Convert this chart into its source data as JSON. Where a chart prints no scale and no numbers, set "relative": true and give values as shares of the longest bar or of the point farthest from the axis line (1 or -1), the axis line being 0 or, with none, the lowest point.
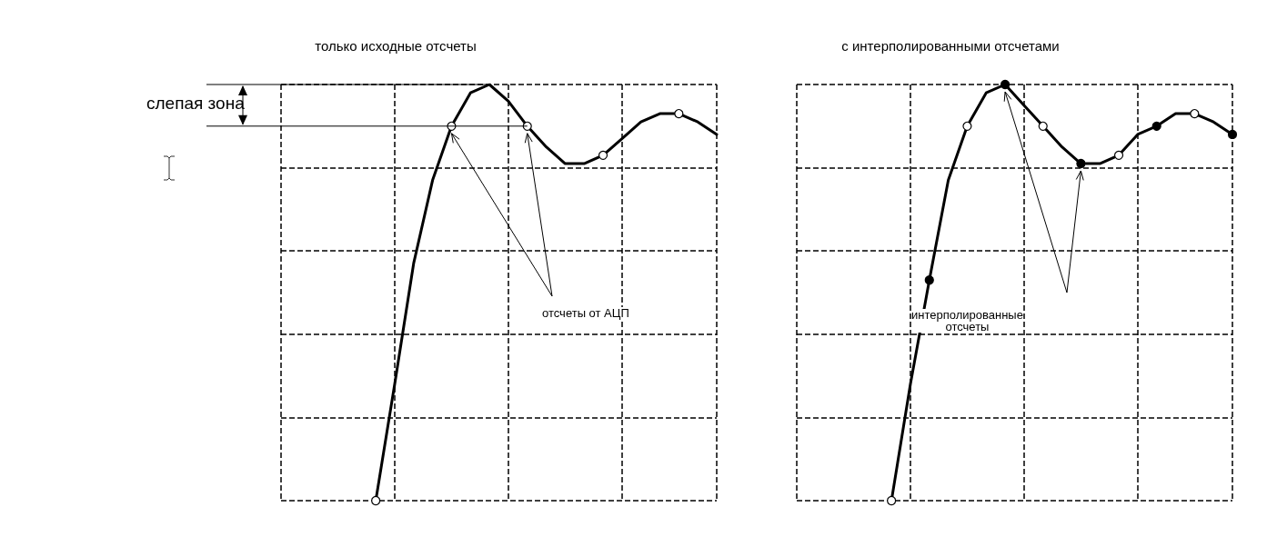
{
  "chart_data": [
    {
      "type": "line",
      "title": "только исходные отсчеты",
      "relative": true,
      "grid": true,
      "categories": [
        null,
        null,
        null,
        null,
        null,
        null,
        null,
        null,
        null,
        null,
        null,
        null,
        null,
        null,
        null,
        null,
        null,
        null,
        null,
        null,
        null,
        null,
        null,
        null
      ],
      "series": [
        {
          "color": "#000000",
          "values": [
            null,
            null,
            null,
            null,
            null,
            0,
            0.28,
            0.57,
            0.77,
            0.9,
            0.98,
            1,
            0.96,
            0.9,
            0.85,
            0.81,
            0.81,
            0.83,
            0.87,
            0.91,
            0.93,
            0.93,
            0.91,
            0.88
          ],
          "colors": [
            null,
            null,
            null,
            null,
            null,
            "#ffffff",
            null,
            null,
            null,
            "#ffffff",
            null,
            null,
            null,
            "#ffffff",
            null,
            null,
            null,
            "#ffffff",
            null,
            null,
            null,
            "#ffffff",
            null,
            null
          ]
        }
      ],
      "annotations": [
        "слепая зона",
        "отсчеты от АЦП"
      ]
    },
    {
      "type": "line",
      "title": "с интерполированными отсчетами",
      "relative": true,
      "grid": true,
      "categories": [
        null,
        null,
        null,
        null,
        null,
        null,
        null,
        null,
        null,
        null,
        null,
        null,
        null,
        null,
        null,
        null,
        null,
        null,
        null,
        null,
        null,
        null,
        null,
        null
      ],
      "series": [
        {
          "color": "#000000",
          "values": [
            null,
            null,
            null,
            null,
            null,
            0,
            0.28,
            0.53,
            0.77,
            0.9,
            0.98,
            1,
            0.95,
            0.9,
            0.85,
            0.81,
            0.81,
            0.83,
            0.88,
            0.9,
            0.93,
            0.93,
            0.91,
            0.88
          ],
          "colors": [
            null,
            null,
            null,
            null,
            null,
            "#ffffff",
            null,
            "#000000",
            null,
            "#ffffff",
            null,
            "#000000",
            null,
            "#ffffff",
            null,
            "#000000",
            null,
            "#ffffff",
            null,
            "#000000",
            null,
            "#ffffff",
            null,
            "#000000"
          ]
        }
      ],
      "annotations": [
        "интерполированные\nотсчеты"
      ]
    }
  ]
}
